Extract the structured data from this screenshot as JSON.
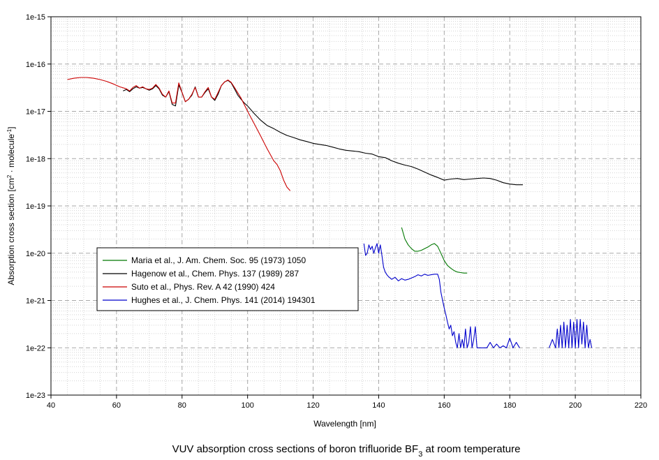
{
  "chart_data": {
    "type": "line",
    "title": "",
    "caption": {
      "prefix": "VUV absorption cross sections of boron trifluoride BF",
      "subscript": "3",
      "suffix": " at room temperature"
    },
    "xlabel": "Wavelength [nm]",
    "ylabel": {
      "part1": "Absorption cross section [cm",
      "sup1": "2",
      "part2": " · molecule",
      "sup2": "-1",
      "part3": "]"
    },
    "xlim": [
      40,
      220
    ],
    "ylim": [
      1e-23,
      1e-15
    ],
    "y_scale": "log",
    "grid": true,
    "x_ticks": [
      40,
      60,
      80,
      100,
      120,
      140,
      160,
      180,
      200,
      220
    ],
    "y_ticks": [
      {
        "value": 1e-15,
        "label": "1e-15"
      },
      {
        "value": 1e-16,
        "label": "1e-16"
      },
      {
        "value": 1e-17,
        "label": "1e-17"
      },
      {
        "value": 1e-18,
        "label": "1e-18"
      },
      {
        "value": 1e-19,
        "label": "1e-19"
      },
      {
        "value": 1e-20,
        "label": "1e-20"
      },
      {
        "value": 1e-21,
        "label": "1e-21"
      },
      {
        "value": 1e-22,
        "label": "1e-22"
      },
      {
        "value": 1e-23,
        "label": "1e-23"
      }
    ],
    "legend_position": "center-left",
    "series": [
      {
        "name": "Maria et al., J. Am. Chem. Soc. 95 (1973) 1050",
        "color": "#007700",
        "x": [
          147,
          148,
          149,
          150,
          151,
          152,
          153,
          154,
          155,
          156,
          157,
          158,
          159,
          160,
          161,
          162,
          163,
          164,
          165,
          166,
          167
        ],
        "y": [
          3.5e-20,
          2e-20,
          1.5e-20,
          1.25e-20,
          1.1e-20,
          1.1e-20,
          1.15e-20,
          1.25e-20,
          1.35e-20,
          1.5e-20,
          1.6e-20,
          1.4e-20,
          1e-20,
          7e-21,
          5.5e-21,
          4.8e-21,
          4.3e-21,
          4e-21,
          3.9e-21,
          3.8e-21,
          3.8e-21
        ]
      },
      {
        "name": "Hagenow et al., Chem. Phys. 137 (1989) 287",
        "color": "#000000",
        "x": [
          62,
          63,
          64,
          65,
          66,
          67,
          68,
          69,
          70,
          71,
          72,
          73,
          74,
          75,
          76,
          77,
          78,
          79,
          80,
          81,
          82,
          83,
          84,
          85,
          86,
          87,
          88,
          89,
          90,
          91,
          92,
          93,
          94,
          95,
          96,
          97,
          98,
          99,
          100,
          102,
          104,
          106,
          108,
          110,
          112,
          114,
          116,
          118,
          120,
          122,
          124,
          126,
          128,
          130,
          132,
          134,
          136,
          138,
          140,
          142,
          144,
          146,
          148,
          150,
          152,
          154,
          156,
          158,
          160,
          162,
          164,
          166,
          168,
          170,
          172,
          174,
          176,
          178,
          180,
          182,
          184
        ],
        "y": [
          2.7e-17,
          2.9e-17,
          2.6e-17,
          3e-17,
          3.3e-17,
          3.1e-17,
          3.2e-17,
          3e-17,
          2.8e-17,
          3e-17,
          3.5e-17,
          3e-17,
          2.2e-17,
          2e-17,
          2.6e-17,
          1.4e-17,
          1.3e-17,
          3.6e-17,
          2.5e-17,
          1.6e-17,
          1.8e-17,
          2.2e-17,
          3.3e-17,
          2e-17,
          2e-17,
          2.5e-17,
          3e-17,
          2e-17,
          1.7e-17,
          2.3e-17,
          3.5e-17,
          4.2e-17,
          4.5e-17,
          4e-17,
          3e-17,
          2.2e-17,
          1.8e-17,
          1.5e-17,
          1.3e-17,
          9e-18,
          6.5e-18,
          5e-18,
          4.3e-18,
          3.6e-18,
          3.1e-18,
          2.8e-18,
          2.5e-18,
          2.3e-18,
          2.1e-18,
          2e-18,
          1.9e-18,
          1.75e-18,
          1.6e-18,
          1.5e-18,
          1.45e-18,
          1.4e-18,
          1.3e-18,
          1.25e-18,
          1.1e-18,
          1.05e-18,
          9e-19,
          8e-19,
          7.3e-19,
          6.8e-19,
          6e-19,
          5.2e-19,
          4.5e-19,
          4e-19,
          3.5e-19,
          3.7e-19,
          3.8e-19,
          3.6e-19,
          3.7e-19,
          3.8e-19,
          3.9e-19,
          3.8e-19,
          3.5e-19,
          3.1e-19,
          2.9e-19,
          2.8e-19,
          2.8e-19
        ]
      },
      {
        "name": "Suto et al., Phys. Rev. A 42 (1990) 424",
        "color": "#cc0000",
        "x": [
          45,
          47,
          49,
          51,
          53,
          55,
          57,
          59,
          61,
          63,
          64,
          65,
          66,
          67,
          68,
          69,
          70,
          71,
          72,
          73,
          74,
          75,
          76,
          77,
          78,
          79,
          80,
          81,
          82,
          83,
          84,
          85,
          86,
          87,
          88,
          89,
          90,
          91,
          92,
          93,
          94,
          95,
          96,
          98,
          100,
          102,
          104,
          106,
          108,
          109,
          110,
          111,
          112,
          113
        ],
        "y": [
          4.7e-17,
          5e-17,
          5.2e-17,
          5.2e-17,
          5e-17,
          4.7e-17,
          4.3e-17,
          3.8e-17,
          3.3e-17,
          3e-17,
          2.7e-17,
          3.2e-17,
          3.5e-17,
          3.1e-17,
          3.3e-17,
          3e-17,
          2.9e-17,
          3.1e-17,
          3.7e-17,
          3.1e-17,
          2.3e-17,
          2e-17,
          2.7e-17,
          1.5e-17,
          1.5e-17,
          4e-17,
          2.5e-17,
          1.6e-17,
          1.8e-17,
          2.3e-17,
          3.2e-17,
          2e-17,
          2e-17,
          2.6e-17,
          3.2e-17,
          2e-17,
          1.8e-17,
          2.5e-17,
          3.5e-17,
          4.2e-17,
          4.6e-17,
          4.1e-17,
          3.2e-17,
          1.9e-17,
          1e-17,
          5.5e-18,
          3e-18,
          1.6e-18,
          9e-19,
          7.5e-19,
          5.5e-19,
          3.5e-19,
          2.5e-19,
          2.1e-19
        ]
      },
      {
        "name": "Hughes et al., J. Chem. Phys. 141 (2014) 194301",
        "color": "#0000cc",
        "x": [
          135.5,
          136,
          136.5,
          137,
          137.5,
          138,
          138.5,
          139,
          139.5,
          140,
          140.5,
          141,
          141.5,
          142,
          142.5,
          143,
          144,
          145,
          146,
          147,
          148,
          149,
          150,
          151,
          152,
          153,
          154,
          155,
          156,
          157,
          158,
          158.5,
          159,
          159.5,
          160,
          160.5,
          161,
          161.5,
          162,
          162.5,
          163,
          163.5,
          164,
          164.5,
          165,
          165.5,
          166,
          166.5,
          167,
          167.5,
          168,
          168.5,
          169,
          169.5,
          170,
          171,
          172,
          173,
          174,
          175,
          176,
          177,
          178,
          179,
          180,
          181,
          182,
          183,
          null,
          192,
          193,
          194,
          194.5,
          195,
          195.5,
          196,
          196.5,
          197,
          197.5,
          198,
          198.5,
          199,
          199.5,
          200,
          200.5,
          201,
          201.5,
          202,
          202.5,
          203,
          203.5,
          204,
          204.5,
          205
        ],
        "y": [
          1.6e-20,
          9e-21,
          1e-20,
          1.5e-20,
          1.2e-20,
          1.4e-20,
          1e-20,
          1.3e-20,
          1.6e-20,
          1e-20,
          1.5e-20,
          9e-21,
          5e-21,
          4e-21,
          3.5e-21,
          3.2e-21,
          2.8e-21,
          3.1e-21,
          2.6e-21,
          2.9e-21,
          2.7e-21,
          2.8e-21,
          3e-21,
          3.2e-21,
          3.5e-21,
          3.3e-21,
          3.6e-21,
          3.4e-21,
          3.5e-21,
          3.6e-21,
          3.6e-21,
          2.8e-21,
          1.5e-21,
          1e-21,
          7e-22,
          5e-22,
          3.5e-22,
          2.5e-22,
          3e-22,
          1.8e-22,
          2.2e-22,
          1.3e-22,
          1e-22,
          2e-22,
          1e-22,
          1.5e-22,
          1e-22,
          2.5e-22,
          1e-22,
          1.3e-22,
          2.8e-22,
          1e-22,
          1.5e-22,
          2.8e-22,
          1e-22,
          1e-22,
          1e-22,
          1e-22,
          1.3e-22,
          1e-22,
          1.2e-22,
          1e-22,
          1.1e-22,
          1e-22,
          1.6e-22,
          1e-22,
          1.3e-22,
          1e-22,
          null,
          1e-22,
          1.5e-22,
          1e-22,
          2.5e-22,
          1e-22,
          3e-22,
          1e-22,
          3.5e-22,
          1e-22,
          3e-22,
          1e-22,
          4e-22,
          1e-22,
          3.5e-22,
          1e-22,
          4e-22,
          1e-22,
          4e-22,
          1.2e-22,
          3.5e-22,
          1e-22,
          3e-22,
          1e-22,
          1.5e-22,
          1e-22
        ]
      }
    ]
  }
}
